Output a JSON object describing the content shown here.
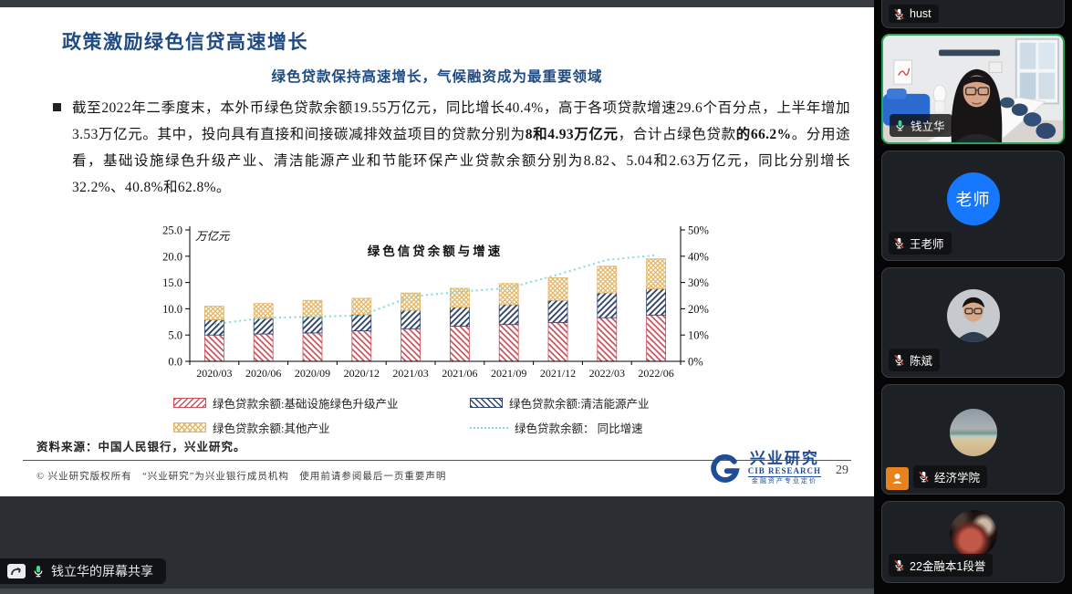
{
  "meeting": {
    "share_banner": {
      "label": "钱立华的屏幕共享"
    },
    "participants": [
      {
        "name": "hust",
        "muted": true,
        "video": false
      },
      {
        "name": "钱立华",
        "muted": false,
        "video": true,
        "active_speaker": true
      },
      {
        "name": "王老师",
        "muted": true,
        "video": false,
        "avatar_text": "老师"
      },
      {
        "name": "陈斌",
        "muted": true,
        "video": false
      },
      {
        "name": "经济学院",
        "muted": true,
        "video": false,
        "host_badge": true
      },
      {
        "name": "22金融本1段誉",
        "muted": true,
        "video": false
      }
    ]
  },
  "slide": {
    "title": "政策激励绿色信贷高速增长",
    "subtitle": "绿色贷款保持高速增长，气候融资成为最重要领域",
    "bullet": {
      "seg1": "截至2022年二季度末，本外币绿色贷款余额19.55万亿元，同比增长40.4%，高于各项贷款增速29.6个百分点，上半年增加3.53万亿元。其中，投向具有直接和间接碳减排效益项目的贷款分别为",
      "bold1": "8和4.93万亿元",
      "seg2": "，合计占绿色贷款",
      "bold2": "的66.2%",
      "seg3": "。分用途看，基础设施绿色升级产业、清洁能源产业和节能环保产业贷款余额分别为8.82、5.04和2.63万亿元，同比分别增长32.2%、40.8%和62.8%。"
    },
    "source": "资料来源：中国人民银行，兴业研究。",
    "copyright": "© 兴业研究版权所有　“兴业研究”为兴业银行成员机构　使用前请参阅最后一页重要声明",
    "logo": {
      "cn": "兴业研究",
      "en": "CIB RESEARCH",
      "tagline": "金融资产专业定价"
    },
    "page_number": "29"
  },
  "chart_data": {
    "type": "bar",
    "stacked": true,
    "title": "绿色信贷余额与增速",
    "unit_label": "万亿元",
    "categories": [
      "2020/03",
      "2020/06",
      "2020/09",
      "2020/12",
      "2021/03",
      "2021/06",
      "2021/09",
      "2021/12",
      "2022/03",
      "2022/06"
    ],
    "series": [
      {
        "name": "绿色贷款余额:基础设施绿色升级产业",
        "style": "red-diagonal-hatch",
        "values": [
          5.0,
          5.2,
          5.4,
          5.8,
          6.2,
          6.7,
          7.0,
          7.4,
          8.3,
          8.8
        ]
      },
      {
        "name": "绿色贷款余额:清洁能源产业",
        "style": "navy-diagonal-hatch",
        "values": [
          2.9,
          3.0,
          3.1,
          3.1,
          3.5,
          3.6,
          3.8,
          4.2,
          4.7,
          5.0
        ]
      },
      {
        "name": "绿色贷款余额:其他产业",
        "style": "gold-crosshatch",
        "values": [
          2.6,
          2.8,
          3.1,
          3.1,
          3.3,
          3.6,
          4.0,
          4.3,
          5.1,
          5.7
        ]
      }
    ],
    "line": {
      "name": "绿色贷款余额： 同比增速",
      "style": "teal-dotted",
      "axis": "right",
      "values": [
        14.2,
        16.5,
        17.0,
        17.4,
        24.6,
        26.5,
        27.9,
        33.0,
        38.6,
        40.4
      ]
    },
    "left_axis": {
      "label": "万亿元",
      "min": 0,
      "max": 25,
      "ticks": [
        "0.0",
        "5.0",
        "10.0",
        "15.0",
        "20.0",
        "25.0"
      ]
    },
    "right_axis": {
      "min": 0,
      "max": 50,
      "ticks": [
        "0%",
        "10%",
        "20%",
        "30%",
        "40%",
        "50%"
      ]
    },
    "grid": false,
    "legend_position": "bottom"
  },
  "colors": {
    "title_blue": "#1F4B82",
    "bar_infrastructure": "#C8515C",
    "bar_clean_energy": "#31456B",
    "bar_other": "#E2B567",
    "growth_line": "#7EDCDC",
    "active_speaker_green": "#23A55A",
    "host_badge_orange": "#E8821E",
    "mic_active_green": "#3DDC84",
    "logo_blue": "#1E4C97"
  }
}
